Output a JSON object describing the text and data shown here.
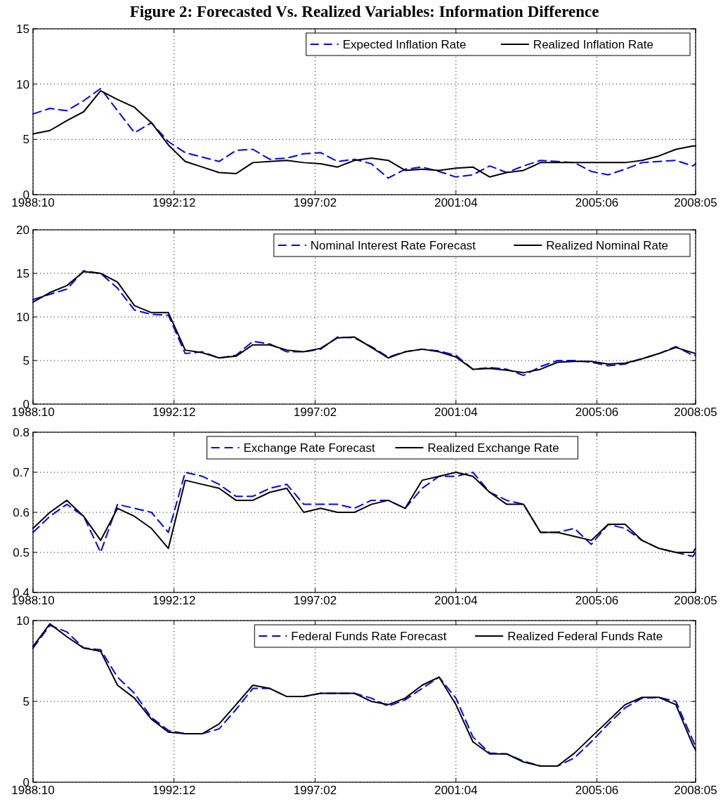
{
  "chart_data": [
    {
      "type": "line",
      "title": "Figure 2: Forecasted Vs. Realized Variables: Information Difference",
      "x": [
        "1988-10",
        "1989-04",
        "1989-10",
        "1990-04",
        "1990-10",
        "1991-04",
        "1991-10",
        "1992-04",
        "1992-10",
        "1993-04",
        "1993-10",
        "1994-04",
        "1994-10",
        "1995-04",
        "1995-10",
        "1996-04",
        "1996-10",
        "1997-04",
        "1997-10",
        "1998-04",
        "1998-10",
        "1999-04",
        "1999-10",
        "2000-04",
        "2000-10",
        "2001-04",
        "2001-10",
        "2002-04",
        "2002-10",
        "2003-04",
        "2003-10",
        "2004-04",
        "2004-10",
        "2005-04",
        "2005-10",
        "2006-04",
        "2006-10",
        "2007-04",
        "2007-10",
        "2008-04",
        "2008-05"
      ],
      "series": [
        {
          "name": "Expected Inflation Rate",
          "color": "#0000ff",
          "line_style": "dashed",
          "values": [
            7.3,
            7.8,
            7.6,
            8.5,
            9.6,
            7.6,
            5.6,
            6.5,
            4.8,
            3.8,
            3.4,
            3.0,
            4.0,
            4.1,
            3.2,
            3.3,
            3.7,
            3.8,
            3.0,
            3.2,
            2.8,
            1.5,
            2.3,
            2.5,
            2.1,
            1.6,
            1.8,
            2.6,
            2.0,
            2.6,
            3.1,
            3.0,
            2.9,
            2.1,
            1.8,
            2.3,
            2.9,
            3.0,
            3.1,
            2.6,
            2.8
          ]
        },
        {
          "name": "Realized Inflation Rate",
          "color": "#000000",
          "line_style": "solid",
          "values": [
            5.5,
            5.8,
            6.7,
            7.5,
            9.4,
            8.6,
            7.9,
            6.5,
            4.5,
            3.0,
            2.5,
            2.0,
            1.9,
            2.9,
            3.0,
            3.1,
            2.9,
            2.8,
            2.5,
            3.1,
            3.3,
            3.1,
            2.2,
            2.3,
            2.2,
            2.4,
            2.5,
            1.6,
            2.0,
            2.2,
            2.9,
            2.9,
            2.9,
            2.9,
            2.9,
            2.9,
            3.1,
            3.5,
            4.1,
            4.4,
            4.4
          ]
        }
      ],
      "xlim": [
        "1988-10",
        "2008-05"
      ],
      "xticks": [
        {
          "value": "1988-10",
          "label": "1988:10"
        },
        {
          "value": "1992-12",
          "label": "1992:12"
        },
        {
          "value": "1997-02",
          "label": "1997:02"
        },
        {
          "value": "2001-04",
          "label": "2001:04"
        },
        {
          "value": "2005-06",
          "label": "2005:06"
        },
        {
          "value": "2008-05",
          "label": "2008:05"
        }
      ],
      "ylim": [
        0,
        15
      ],
      "yticks": [
        0,
        5,
        10,
        15
      ],
      "grid": true,
      "legend": "top right"
    },
    {
      "type": "line",
      "x": [
        "1988-10",
        "1989-04",
        "1989-10",
        "1990-04",
        "1990-10",
        "1991-04",
        "1991-10",
        "1992-04",
        "1992-10",
        "1993-04",
        "1993-10",
        "1994-04",
        "1994-10",
        "1995-04",
        "1995-10",
        "1996-04",
        "1996-10",
        "1997-04",
        "1997-10",
        "1998-04",
        "1998-10",
        "1999-04",
        "1999-10",
        "2000-04",
        "2000-10",
        "2001-04",
        "2001-10",
        "2002-04",
        "2002-10",
        "2003-04",
        "2003-10",
        "2004-04",
        "2004-10",
        "2005-04",
        "2005-10",
        "2006-04",
        "2006-10",
        "2007-04",
        "2007-10",
        "2008-04",
        "2008-05"
      ],
      "series": [
        {
          "name": "Nominal Interest Rate Forecast",
          "color": "#0000ff",
          "line_style": "dashed",
          "values": [
            12.0,
            12.6,
            13.2,
            15.3,
            15.0,
            13.3,
            10.8,
            10.3,
            10.2,
            5.8,
            6.0,
            5.3,
            5.6,
            7.2,
            6.9,
            6.0,
            6.0,
            6.3,
            7.7,
            7.6,
            6.6,
            5.4,
            6.0,
            6.3,
            6.1,
            5.6,
            4.0,
            4.2,
            4.0,
            3.3,
            4.3,
            5.0,
            5.0,
            4.8,
            4.4,
            4.6,
            5.2,
            5.8,
            6.6,
            5.6,
            5.6
          ]
        },
        {
          "name": "Realized Nominal Rate",
          "color": "#000000",
          "line_style": "solid",
          "values": [
            11.7,
            12.8,
            13.6,
            15.2,
            15.0,
            14.0,
            11.3,
            10.5,
            10.5,
            6.2,
            5.9,
            5.3,
            5.5,
            6.8,
            6.8,
            6.2,
            6.0,
            6.4,
            7.6,
            7.7,
            6.5,
            5.3,
            6.0,
            6.3,
            6.0,
            5.4,
            4.0,
            4.1,
            3.9,
            3.6,
            4.0,
            4.8,
            4.9,
            4.9,
            4.6,
            4.7,
            5.2,
            5.8,
            6.5,
            5.9,
            5.8
          ]
        }
      ],
      "xlim": [
        "1988-10",
        "2008-05"
      ],
      "xticks": [
        {
          "value": "1988-10",
          "label": "1988:10"
        },
        {
          "value": "1992-12",
          "label": "1992:12"
        },
        {
          "value": "1997-02",
          "label": "1997:02"
        },
        {
          "value": "2001-04",
          "label": "2001:04"
        },
        {
          "value": "2005-06",
          "label": "2005:06"
        },
        {
          "value": "2008-05",
          "label": "2008:05"
        }
      ],
      "ylim": [
        0,
        20
      ],
      "yticks": [
        0,
        5,
        10,
        15,
        20
      ],
      "grid": true,
      "legend": "top right"
    },
    {
      "type": "line",
      "x": [
        "1988-10",
        "1989-04",
        "1989-10",
        "1990-04",
        "1990-10",
        "1991-04",
        "1991-10",
        "1992-04",
        "1992-10",
        "1993-04",
        "1993-10",
        "1994-04",
        "1994-10",
        "1995-04",
        "1995-10",
        "1996-04",
        "1996-10",
        "1997-04",
        "1997-10",
        "1998-04",
        "1998-10",
        "1999-04",
        "1999-10",
        "2000-04",
        "2000-10",
        "2001-04",
        "2001-10",
        "2002-04",
        "2002-10",
        "2003-04",
        "2003-10",
        "2004-04",
        "2004-10",
        "2005-04",
        "2005-10",
        "2006-04",
        "2006-10",
        "2007-04",
        "2007-10",
        "2008-04",
        "2008-05"
      ],
      "series": [
        {
          "name": "Exchange Rate Forecast",
          "color": "#0000ff",
          "line_style": "dashed",
          "values": [
            0.55,
            0.59,
            0.62,
            0.59,
            0.5,
            0.62,
            0.61,
            0.6,
            0.55,
            0.7,
            0.69,
            0.67,
            0.64,
            0.64,
            0.66,
            0.67,
            0.62,
            0.62,
            0.62,
            0.61,
            0.63,
            0.63,
            0.61,
            0.66,
            0.69,
            0.69,
            0.7,
            0.65,
            0.63,
            0.62,
            0.55,
            0.55,
            0.56,
            0.52,
            0.57,
            0.56,
            0.53,
            0.51,
            0.5,
            0.49,
            0.5
          ]
        },
        {
          "name": "Realized Exchange Rate",
          "color": "#000000",
          "line_style": "solid",
          "values": [
            0.56,
            0.6,
            0.63,
            0.59,
            0.53,
            0.61,
            0.59,
            0.56,
            0.51,
            0.68,
            0.67,
            0.66,
            0.63,
            0.63,
            0.65,
            0.66,
            0.6,
            0.61,
            0.6,
            0.6,
            0.62,
            0.63,
            0.61,
            0.68,
            0.69,
            0.7,
            0.69,
            0.65,
            0.62,
            0.62,
            0.55,
            0.55,
            0.54,
            0.53,
            0.57,
            0.57,
            0.53,
            0.51,
            0.5,
            0.5,
            0.51
          ]
        }
      ],
      "xlim": [
        "1988-10",
        "2008-05"
      ],
      "xticks": [
        {
          "value": "1988-10",
          "label": "1988:10"
        },
        {
          "value": "1992-12",
          "label": "1992:12"
        },
        {
          "value": "1997-02",
          "label": "1997:02"
        },
        {
          "value": "2001-04",
          "label": "2001:04"
        },
        {
          "value": "2005-06",
          "label": "2005:06"
        },
        {
          "value": "2008-05",
          "label": "2008:05"
        }
      ],
      "ylim": [
        0.4,
        0.8
      ],
      "yticks": [
        0.4,
        0.5,
        0.6,
        0.7,
        0.8
      ],
      "grid": true,
      "legend": "top"
    },
    {
      "type": "line",
      "x": [
        "1988-10",
        "1989-04",
        "1989-10",
        "1990-04",
        "1990-10",
        "1991-04",
        "1991-10",
        "1992-04",
        "1992-10",
        "1993-04",
        "1993-10",
        "1994-04",
        "1994-10",
        "1995-04",
        "1995-10",
        "1996-04",
        "1996-10",
        "1997-04",
        "1997-10",
        "1998-04",
        "1998-10",
        "1999-04",
        "1999-10",
        "2000-04",
        "2000-10",
        "2001-04",
        "2001-10",
        "2002-04",
        "2002-10",
        "2003-04",
        "2003-10",
        "2004-04",
        "2004-10",
        "2005-04",
        "2005-10",
        "2006-04",
        "2006-10",
        "2007-04",
        "2007-10",
        "2008-04",
        "2008-05"
      ],
      "series": [
        {
          "name": "Federal Funds Rate Forecast",
          "color": "#0000ff",
          "line_style": "dashed",
          "values": [
            8.3,
            9.7,
            9.3,
            8.3,
            8.2,
            6.5,
            5.5,
            4.0,
            3.2,
            3.0,
            3.0,
            3.3,
            4.5,
            5.8,
            5.8,
            5.3,
            5.3,
            5.5,
            5.5,
            5.5,
            5.2,
            4.7,
            5.1,
            5.8,
            6.5,
            5.2,
            2.8,
            1.8,
            1.75,
            1.3,
            1.0,
            1.0,
            1.5,
            2.5,
            3.6,
            4.6,
            5.2,
            5.25,
            5.0,
            2.6,
            2.2
          ]
        },
        {
          "name": "Realized Federal Funds Rate",
          "color": "#000000",
          "line_style": "solid",
          "values": [
            8.4,
            9.8,
            9.0,
            8.3,
            8.1,
            6.0,
            5.2,
            3.9,
            3.1,
            3.0,
            3.0,
            3.6,
            4.8,
            6.0,
            5.8,
            5.3,
            5.3,
            5.5,
            5.5,
            5.5,
            5.0,
            4.8,
            5.2,
            6.0,
            6.5,
            4.8,
            2.5,
            1.75,
            1.75,
            1.25,
            1.0,
            1.0,
            1.8,
            2.8,
            3.8,
            4.8,
            5.25,
            5.25,
            4.8,
            2.3,
            2.0
          ]
        }
      ],
      "xlim": [
        "1988-10",
        "2008-05"
      ],
      "xticks": [
        {
          "value": "1988-10",
          "label": "1988:10"
        },
        {
          "value": "1992-12",
          "label": "1992:12"
        },
        {
          "value": "1997-02",
          "label": "1997:02"
        },
        {
          "value": "2001-04",
          "label": "2001:04"
        },
        {
          "value": "2005-06",
          "label": "2005:06"
        },
        {
          "value": "2008-05",
          "label": "2008:05"
        }
      ],
      "ylim": [
        0,
        10
      ],
      "yticks": [
        0,
        5,
        10
      ],
      "grid": true,
      "legend": "top right"
    }
  ]
}
